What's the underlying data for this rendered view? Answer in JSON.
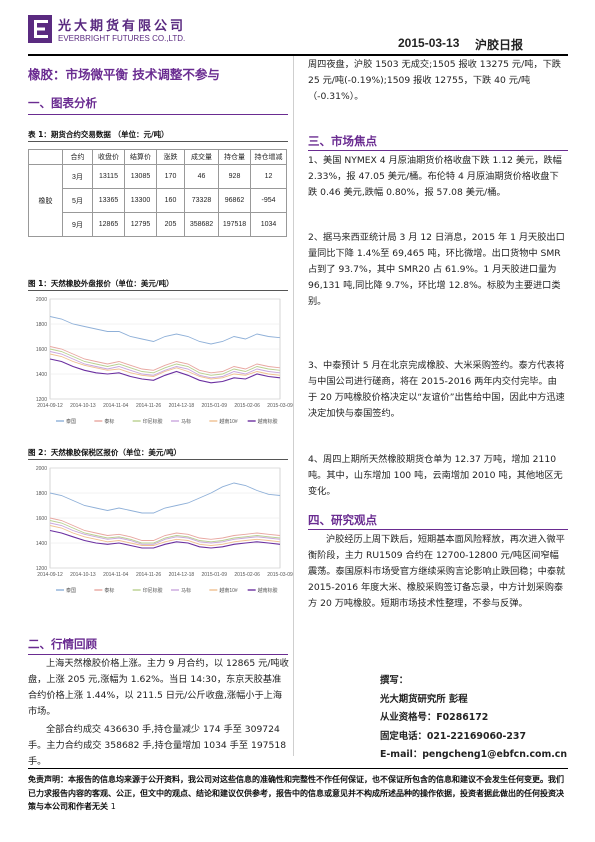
{
  "header": {
    "company_cn": "光大期货有限公司",
    "company_en": "EVERBRIGHT FUTURES CO.,LTD.",
    "date": "2015-03-13",
    "report_name": "沪胶日报"
  },
  "main_title": "橡胶：市场微平衡 技术调整不参与",
  "sections": {
    "s1": "一、图表分析",
    "s2": "二、行情回顾",
    "s3": "三、市场焦点",
    "s4": "四、研究观点"
  },
  "table1": {
    "caption": "表 1：期货合约交易数据 （单位：元/吨）",
    "headers": [
      "合约",
      "收盘价",
      "结算价",
      "涨跌",
      "成交量",
      "持仓量",
      "持仓增减"
    ],
    "commodity": "橡胶",
    "rows": [
      [
        "3月",
        "13115",
        "13085",
        "170",
        "46",
        "928",
        "12"
      ],
      [
        "5月",
        "13365",
        "13300",
        "160",
        "73328",
        "96862",
        "-954"
      ],
      [
        "9月",
        "12865",
        "12795",
        "205",
        "358682",
        "197518",
        "1034"
      ]
    ]
  },
  "chart1": {
    "caption": "图 1：天然橡胶外盘报价（单位：美元/吨）",
    "chart_data": {
      "type": "line",
      "title": "",
      "ylim": [
        1200,
        2000
      ],
      "yticks": [
        "2000",
        "1800",
        "1600",
        "1400",
        "1200"
      ],
      "xticks": [
        "2014-09-12",
        "2014-10-13",
        "2014-11-04",
        "2014-11-26",
        "2014-12-18",
        "2015-01-09",
        "2015-02-06",
        "2015-03-09"
      ],
      "legend": [
        "泰国",
        "泰标",
        "印尼标胶",
        "马标",
        "越南10#",
        "越南标胶"
      ],
      "colors": [
        "#8fb0d8",
        "#e8a6a0",
        "#b8cf8f",
        "#c9a6dd",
        "#f0c090",
        "#6b2fa0"
      ],
      "series": [
        {
          "name": "泰国",
          "values": [
            1860,
            1840,
            1800,
            1780,
            1760,
            1740,
            1740,
            1700,
            1680,
            1660,
            1700,
            1720,
            1700,
            1660,
            1640,
            1660,
            1700,
            1680,
            1720,
            1700,
            1690
          ]
        },
        {
          "name": "泰标",
          "values": [
            1620,
            1600,
            1560,
            1520,
            1500,
            1480,
            1500,
            1470,
            1440,
            1430,
            1470,
            1500,
            1480,
            1430,
            1410,
            1420,
            1460,
            1440,
            1480,
            1460,
            1450
          ]
        },
        {
          "name": "印尼标胶",
          "values": [
            1600,
            1580,
            1540,
            1500,
            1480,
            1460,
            1480,
            1450,
            1420,
            1410,
            1450,
            1480,
            1460,
            1410,
            1390,
            1400,
            1440,
            1420,
            1460,
            1440,
            1430
          ]
        },
        {
          "name": "马标",
          "values": [
            1580,
            1560,
            1520,
            1480,
            1460,
            1440,
            1460,
            1430,
            1400,
            1390,
            1430,
            1460,
            1440,
            1390,
            1370,
            1380,
            1420,
            1400,
            1440,
            1420,
            1410
          ]
        },
        {
          "name": "越南10#",
          "values": [
            1560,
            1540,
            1500,
            1470,
            1450,
            1430,
            1440,
            1410,
            1390,
            1380,
            1420,
            1450,
            1420,
            1380,
            1360,
            1370,
            1400,
            1390,
            1420,
            1400,
            1390
          ]
        },
        {
          "name": "越南标胶",
          "values": [
            1520,
            1500,
            1460,
            1430,
            1410,
            1400,
            1410,
            1380,
            1360,
            1350,
            1390,
            1420,
            1390,
            1350,
            1330,
            1340,
            1370,
            1360,
            1400,
            1380,
            1370
          ]
        }
      ]
    }
  },
  "chart2": {
    "caption": "图 2：天然橡胶保税区报价（单位：美元/吨）",
    "chart_data": {
      "type": "line",
      "title": "",
      "ylim": [
        1200,
        2000
      ],
      "yticks": [
        "2000",
        "1800",
        "1600",
        "1400",
        "1200"
      ],
      "xticks": [
        "2014-09-12",
        "2014-10-13",
        "2014-11-04",
        "2014-11-26",
        "2014-12-18",
        "2015-01-09",
        "2015-02-06",
        "2015-03-09"
      ],
      "legend": [
        "泰国",
        "泰标",
        "印尼标胶",
        "马标",
        "越南10#",
        "越南标胶"
      ],
      "colors": [
        "#8fb0d8",
        "#e8a6a0",
        "#b8cf8f",
        "#c9a6dd",
        "#f0c090",
        "#6b2fa0"
      ],
      "series": [
        {
          "name": "泰国",
          "values": [
            1800,
            1780,
            1740,
            1700,
            1680,
            1660,
            1680,
            1660,
            1640,
            1640,
            1680,
            1700,
            1720,
            1760,
            1800,
            1850,
            1880,
            1860,
            1820,
            1790,
            1780
          ]
        },
        {
          "name": "泰标",
          "values": [
            1600,
            1580,
            1540,
            1500,
            1480,
            1460,
            1470,
            1450,
            1420,
            1420,
            1460,
            1480,
            1470,
            1440,
            1430,
            1440,
            1460,
            1470,
            1480,
            1470,
            1460
          ]
        },
        {
          "name": "印尼标胶",
          "values": [
            1580,
            1560,
            1520,
            1480,
            1460,
            1440,
            1450,
            1430,
            1400,
            1400,
            1440,
            1460,
            1450,
            1420,
            1410,
            1420,
            1440,
            1450,
            1460,
            1450,
            1440
          ]
        },
        {
          "name": "马标",
          "values": [
            1560,
            1540,
            1500,
            1470,
            1450,
            1430,
            1440,
            1420,
            1390,
            1390,
            1430,
            1450,
            1440,
            1410,
            1400,
            1410,
            1430,
            1440,
            1450,
            1440,
            1430
          ]
        },
        {
          "name": "越南10#",
          "values": [
            1540,
            1520,
            1480,
            1450,
            1430,
            1410,
            1420,
            1400,
            1380,
            1380,
            1410,
            1430,
            1420,
            1390,
            1380,
            1390,
            1410,
            1420,
            1430,
            1420,
            1410
          ]
        },
        {
          "name": "越南标胶",
          "values": [
            1500,
            1480,
            1450,
            1420,
            1400,
            1390,
            1400,
            1380,
            1360,
            1360,
            1390,
            1410,
            1400,
            1370,
            1360,
            1370,
            1390,
            1400,
            1410,
            1400,
            1390
          ]
        }
      ]
    }
  },
  "review": {
    "p1": "上海天然橡胶价格上涨。主力 9 月合约，以 12865 元/吨收盘，上涨 205 元,涨幅为 1.62%。当日 14:30，东京天胶基准合约价格上涨 1.44%，以 211.5 日元/公斤收盘,涨幅小于上海市场。",
    "p2": "全部合约成交 436630 手,持仓量减少 174 手至 309724 手。主力合约成交 358682 手,持仓量增加 1034 手至 197518 手。"
  },
  "right_top": "周四夜盘，沪胶 1503 无成交;1505 报收 13275 元/吨，下跌 25 元/吨(-0.19%);1509 报收 12755，下跌 40 元/吨（-0.31%）。",
  "focus": [
    "1、美国 NYMEX 4 月原油期货价格收盘下跌 1.12 美元，跌幅 2.33%，报 47.05 美元/桶。布伦特 4 月原油期货价格收盘下跌 0.46 美元,跌幅 0.80%，报 57.08 美元/桶。",
    "2、据马来西亚统计局 3 月 12 日消息，2015 年 1 月天胶出口量同比下降 1.4%至 69,465 吨，环比微增。出口货物中 SMR 占到了 93.7%，其中 SMR20 占 61.9%。1 月天胶进口量为 96,131 吨,同比降 9.7%，环比增 12.8%。标胶为主要进口类别。",
    "3、中泰预计 5 月在北京完成橡胶、大米采购签约。泰方代表将与中国公司进行磋商，将在 2015-2016 两年内交付完毕。由于 20 万吨橡胶价格决定以“友谊价”出售给中国，因此中方迅速决定加快与泰国签约。",
    "4、周四上期所天然橡胶期货仓单为 12.37 万吨，增加 2110 吨。其中，山东增加 100 吨，云南增加 2010 吨，其他地区无变化。"
  ],
  "view": "沪胶经历上周下跌后，短期基本面风险释放，再次进入微平衡阶段，主力 RU1509 合约在 12700-12800 元/吨区间窄幅震荡。泰国原料市场受官方继续采购言论影响止跌回稳；中泰就 2015-2016 年度大米、橡胶采购签订备忘录，中方计划采购泰方 20 万吨橡胶。短期市场技术性整理，不参与反弹。",
  "author": {
    "label": "撰写：",
    "name": "光大期货研究所  彭程",
    "qual": "从业资格号：F0286172",
    "phone": "固定电话：021-22169060-237",
    "email": "E-mail：pengcheng1@ebfcn.com.cn"
  },
  "disclaimer": "免责声明：本报告的信息均来源于公开资料，我公司对这些信息的准确性和完整性不作任何保证，也不保证所包含的信息和建议不会发生任何变更。我们已力求报告内容的客观、公正，但文中的观点、结论和建议仅供参考，报告中的信息或意见并不构成所述品种的操作依据，投资者据此做出的任何投资决策与本公司和作者无关",
  "page_number": "1"
}
